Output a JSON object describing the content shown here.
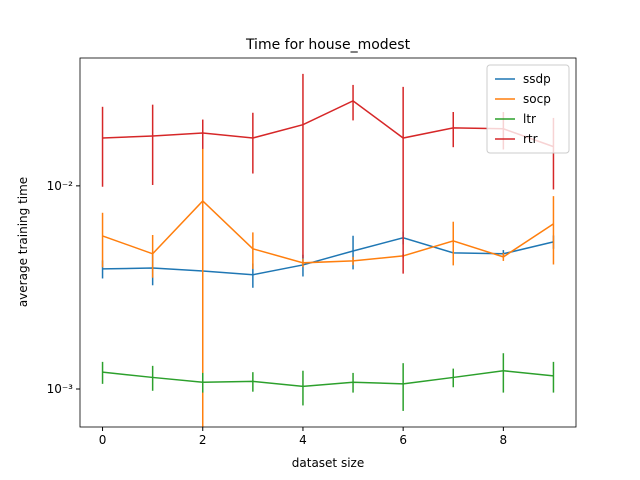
{
  "chart_data": {
    "type": "line",
    "title": "Time for house_modest",
    "x_label": "dataset size",
    "y_label": "average training time",
    "x": [
      0,
      1,
      2,
      3,
      4,
      5,
      6,
      7,
      8,
      9
    ],
    "xlim": [
      -0.45,
      9.45
    ],
    "xticks": [
      0,
      2,
      4,
      6,
      8
    ],
    "ylim": [
      0.00065,
      0.0426
    ],
    "log_y": true,
    "yticks": [
      {
        "value": 0.001,
        "label": "10⁻³"
      },
      {
        "value": 0.01,
        "label": "10⁻²"
      }
    ],
    "legend": "upper right",
    "series": [
      {
        "name": "ssdp",
        "color": "#1f77b4",
        "values": [
          0.0039,
          0.00394,
          0.00381,
          0.00365,
          0.00408,
          0.00478,
          0.00555,
          0.00468,
          0.00463,
          0.0053
        ],
        "errors": [
          0.0004,
          0.0007,
          0.0004,
          0.0005,
          0.0005,
          0.0009,
          0.0004,
          0.0005,
          0.0002,
          0.0004
        ]
      },
      {
        "name": "socp",
        "color": "#ff7f0e",
        "values": [
          0.00567,
          0.00463,
          0.00843,
          0.0049,
          0.00418,
          0.00427,
          0.00452,
          0.00536,
          0.00447,
          0.0065
        ],
        "errors": [
          0.0017,
          0.0011,
          0.008,
          0.001,
          0.0002,
          0.0002,
          0.0001,
          0.0013,
          0.0002,
          0.0024
        ]
      },
      {
        "name": "ltr",
        "color": "#2ca02c",
        "values": [
          0.00121,
          0.00114,
          0.00108,
          0.00109,
          0.00103,
          0.00108,
          0.00106,
          0.00114,
          0.00123,
          0.00116
        ],
        "errors": [
          0.00015,
          0.00016,
          0.00012,
          0.00012,
          0.0002,
          0.00012,
          0.00028,
          0.00012,
          0.00027,
          0.0002
        ]
      },
      {
        "name": "rtr",
        "color": "#d62728",
        "values": [
          0.0172,
          0.0176,
          0.0182,
          0.0172,
          0.02,
          0.0262,
          0.0172,
          0.0193,
          0.0191,
          0.0156
        ],
        "errors": [
          0.0073,
          0.0075,
          0.003,
          0.0057,
          0.0156,
          0.0052,
          0.0135,
          0.0038,
          0.004,
          0.006
        ]
      }
    ]
  }
}
